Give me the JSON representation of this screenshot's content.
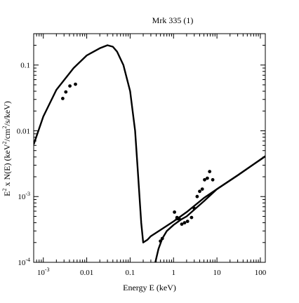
{
  "chart_data": {
    "type": "scatter",
    "title": "Mrk 335 (1)",
    "xlabel": "Energy E (keV)",
    "ylabel_parts": {
      "a": "E",
      "a_sup": "2",
      "b": " x N(E) (keV",
      "b_sup": "2",
      "c": "/cm",
      "c_sup": "2",
      "d": "/s/keV)"
    },
    "x_scale": "log",
    "y_scale": "log",
    "xlim": [
      0.0006,
      130
    ],
    "ylim": [
      0.0001,
      0.3
    ],
    "x_ticks": [
      {
        "value": 0.001,
        "base": "10",
        "exp": "-3"
      },
      {
        "value": 0.01,
        "label": "0.01"
      },
      {
        "value": 0.1,
        "label": "0.1"
      },
      {
        "value": 1,
        "label": "1"
      },
      {
        "value": 10,
        "label": "10"
      },
      {
        "value": 100,
        "label": "100"
      }
    ],
    "y_ticks": [
      {
        "value": 0.0001,
        "base": "10",
        "exp": "-4"
      },
      {
        "value": 0.001,
        "base": "10",
        "exp": "-3"
      },
      {
        "value": 0.01,
        "label": "0.01"
      },
      {
        "value": 0.1,
        "label": "0.1"
      }
    ],
    "series": [
      {
        "marker": "dot",
        "points": [
          [
            0.0028,
            0.031
          ],
          [
            0.0033,
            0.039
          ],
          [
            0.0041,
            0.048
          ],
          [
            0.0055,
            0.051
          ],
          [
            1.05,
            0.00058
          ],
          [
            1.2,
            0.00048
          ],
          [
            1.35,
            0.00046
          ],
          [
            1.55,
            0.00038
          ],
          [
            1.8,
            0.0004
          ],
          [
            2.1,
            0.00042
          ],
          [
            2.6,
            0.00048
          ],
          [
            3.0,
            0.00066
          ],
          [
            3.5,
            0.001
          ],
          [
            4.0,
            0.0012
          ],
          [
            4.6,
            0.0013
          ],
          [
            5.2,
            0.0018
          ],
          [
            6.0,
            0.0019
          ],
          [
            6.8,
            0.0024
          ],
          [
            8.0,
            0.0018
          ]
        ]
      },
      {
        "marker": "line",
        "points": [
          [
            0.0006,
            0.0062
          ],
          [
            0.001,
            0.0165
          ],
          [
            0.002,
            0.042
          ],
          [
            0.005,
            0.09
          ],
          [
            0.01,
            0.14
          ],
          [
            0.02,
            0.18
          ],
          [
            0.03,
            0.2
          ],
          [
            0.04,
            0.19
          ],
          [
            0.05,
            0.16
          ],
          [
            0.07,
            0.1
          ],
          [
            0.1,
            0.04
          ],
          [
            0.13,
            0.01
          ],
          [
            0.15,
            0.0025
          ],
          [
            0.17,
            0.0007
          ],
          [
            0.18,
            0.0004
          ],
          [
            0.2,
            0.0002
          ],
          [
            0.25,
            0.00022
          ],
          [
            0.3,
            0.00025
          ],
          [
            0.5,
            0.00031
          ],
          [
            1,
            0.00042
          ],
          [
            2,
            0.00058
          ],
          [
            5,
            0.00095
          ],
          [
            10,
            0.0013
          ],
          [
            30,
            0.0021
          ],
          [
            70,
            0.0031
          ],
          [
            130,
            0.0041
          ]
        ]
      },
      {
        "marker": "line",
        "points": [
          [
            0.38,
            0.0001
          ],
          [
            0.45,
            0.00016
          ],
          [
            0.55,
            0.00023
          ],
          [
            0.7,
            0.0003
          ],
          [
            1,
            0.00037
          ],
          [
            1.5,
            0.00045
          ],
          [
            2,
            0.0005
          ],
          [
            5,
            0.00085
          ],
          [
            10,
            0.0013
          ],
          [
            30,
            0.0021
          ],
          [
            70,
            0.0031
          ],
          [
            130,
            0.0041
          ]
        ]
      },
      {
        "marker": "dot",
        "points": [
          [
            0.5,
            0.00021
          ],
          [
            0.55,
            0.00023
          ],
          [
            1.2,
            0.00046
          ]
        ]
      }
    ]
  }
}
